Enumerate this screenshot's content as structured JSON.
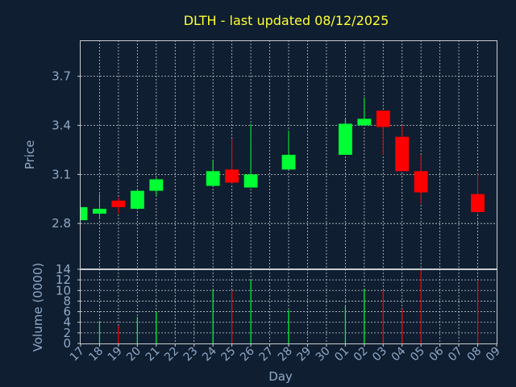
{
  "title": "DLTH - last updated 08/12/2025",
  "colors": {
    "background": "#0f1e30",
    "up": "#00ff33",
    "down": "#ff0000",
    "title": "#ffff33",
    "text": "#8fa9c8",
    "grid": "#c8ccd2"
  },
  "chart_data": [
    {
      "type": "candlestick",
      "ylabel": "Price",
      "ylim": [
        2.52,
        3.92
      ],
      "yticks": [
        "2.8",
        "3.1",
        "3.4",
        "3.7"
      ],
      "grid": true,
      "candles": [
        {
          "x": "17",
          "open": 2.82,
          "high": 2.9,
          "low": 2.82,
          "close": 2.9
        },
        {
          "x": "18",
          "open": 2.86,
          "high": 2.98,
          "low": 2.83,
          "close": 2.89
        },
        {
          "x": "19",
          "open": 2.94,
          "high": 2.96,
          "low": 2.86,
          "close": 2.9
        },
        {
          "x": "20",
          "open": 2.89,
          "high": 3.01,
          "low": 2.89,
          "close": 3.0
        },
        {
          "x": "21",
          "open": 3.0,
          "high": 3.08,
          "low": 2.97,
          "close": 3.07
        },
        {
          "x": "24",
          "open": 3.03,
          "high": 3.19,
          "low": 3.03,
          "close": 3.12
        },
        {
          "x": "25",
          "open": 3.13,
          "high": 3.32,
          "low": 3.04,
          "close": 3.05
        },
        {
          "x": "26",
          "open": 3.02,
          "high": 3.41,
          "low": 3.02,
          "close": 3.1
        },
        {
          "x": "28",
          "open": 3.13,
          "high": 3.37,
          "low": 3.13,
          "close": 3.22
        },
        {
          "x": "01",
          "open": 3.22,
          "high": 3.44,
          "low": 3.22,
          "close": 3.41
        },
        {
          "x": "02",
          "open": 3.4,
          "high": 3.57,
          "low": 3.4,
          "close": 3.44
        },
        {
          "x": "03",
          "open": 3.49,
          "high": 3.49,
          "low": 3.22,
          "close": 3.39
        },
        {
          "x": "04",
          "open": 3.33,
          "high": 3.4,
          "low": 3.12,
          "close": 3.12
        },
        {
          "x": "05",
          "open": 3.12,
          "high": 3.22,
          "low": 2.92,
          "close": 2.99
        },
        {
          "x": "08",
          "open": 2.98,
          "high": 3.11,
          "low": 2.86,
          "close": 2.87
        }
      ]
    },
    {
      "type": "bar",
      "xlabel": "Day",
      "ylabel": "Volume (0000)",
      "ylim": [
        0,
        14
      ],
      "yticks": [
        "0",
        "2",
        "4",
        "6",
        "8",
        "10",
        "12",
        "14"
      ],
      "categories": [
        "17",
        "18",
        "19",
        "20",
        "21",
        "22",
        "23",
        "24",
        "25",
        "26",
        "27",
        "28",
        "29",
        "30",
        "01",
        "02",
        "03",
        "04",
        "05",
        "06",
        "07",
        "08",
        "09"
      ],
      "bars": [
        {
          "x": "18",
          "value": 4.2,
          "direction": "up"
        },
        {
          "x": "19",
          "value": 3.3,
          "direction": "down"
        },
        {
          "x": "20",
          "value": 5.0,
          "direction": "up"
        },
        {
          "x": "21",
          "value": 6.0,
          "direction": "up"
        },
        {
          "x": "24",
          "value": 10.2,
          "direction": "up"
        },
        {
          "x": "25",
          "value": 10.0,
          "direction": "down"
        },
        {
          "x": "26",
          "value": 12.0,
          "direction": "up"
        },
        {
          "x": "28",
          "value": 6.3,
          "direction": "up"
        },
        {
          "x": "01",
          "value": 7.0,
          "direction": "up"
        },
        {
          "x": "02",
          "value": 10.3,
          "direction": "up"
        },
        {
          "x": "03",
          "value": 10.1,
          "direction": "down"
        },
        {
          "x": "04",
          "value": 6.5,
          "direction": "down"
        },
        {
          "x": "05",
          "value": 14.0,
          "direction": "down"
        },
        {
          "x": "08",
          "value": 12.0,
          "direction": "down"
        }
      ]
    }
  ]
}
